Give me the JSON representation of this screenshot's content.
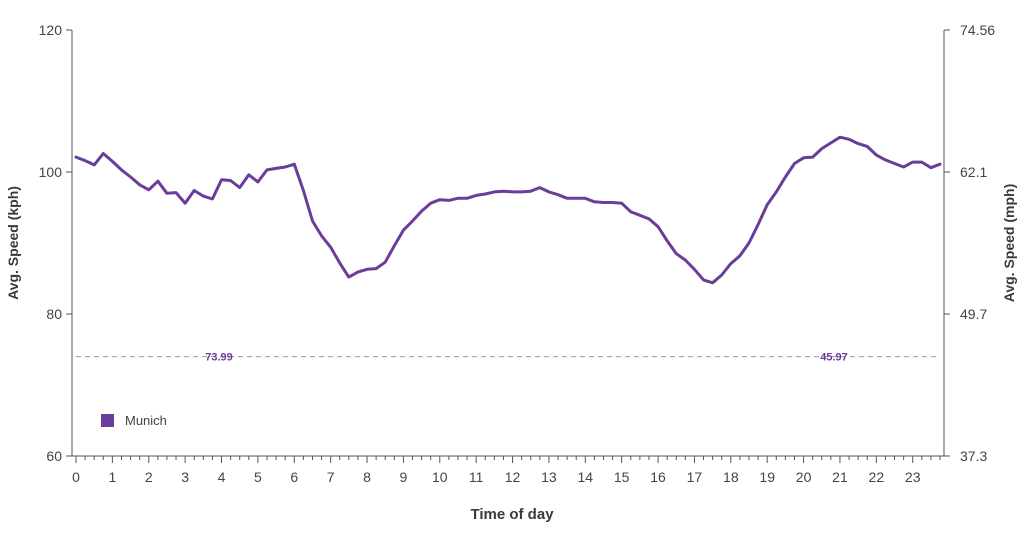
{
  "chart_data": {
    "type": "line",
    "xlabel": "Time of day",
    "ylabel_left": "Avg. Speed (kph)",
    "ylabel_right": "Avg. Speed (mph)",
    "xlim": [
      0,
      23.75
    ],
    "ylim": [
      60,
      120
    ],
    "x_ticks": [
      0,
      1,
      2,
      3,
      4,
      5,
      6,
      7,
      8,
      9,
      10,
      11,
      12,
      13,
      14,
      15,
      16,
      17,
      18,
      19,
      20,
      21,
      22,
      23
    ],
    "y_ticks_left": [
      60,
      80,
      100,
      120
    ],
    "y_ticks_right": [
      {
        "at": 60,
        "label": "37.3"
      },
      {
        "at": 80,
        "label": "49.7"
      },
      {
        "at": 100,
        "label": "62.1"
      },
      {
        "at": 120,
        "label": "74.56"
      }
    ],
    "reference_line": {
      "y": 74.0,
      "label_left": "73.99",
      "label_right": "45.97",
      "style": "dashed"
    },
    "grid": false,
    "legend": {
      "position": "bottom-left"
    },
    "colors": {
      "series": "#6a3d9a",
      "axis": "#555555",
      "reference": "#9a9a9a"
    },
    "series": [
      {
        "name": "Munich",
        "x": [
          0,
          0.25,
          0.5,
          0.75,
          1,
          1.25,
          1.5,
          1.75,
          2,
          2.25,
          2.5,
          2.75,
          3,
          3.25,
          3.5,
          3.75,
          4,
          4.25,
          4.5,
          4.75,
          5,
          5.25,
          5.5,
          5.75,
          6,
          6.25,
          6.5,
          6.75,
          7,
          7.25,
          7.5,
          7.75,
          8,
          8.25,
          8.5,
          8.75,
          9,
          9.25,
          9.5,
          9.75,
          10,
          10.25,
          10.5,
          10.75,
          11,
          11.25,
          11.5,
          11.75,
          12,
          12.25,
          12.5,
          12.75,
          13,
          13.25,
          13.5,
          13.75,
          14,
          14.25,
          14.5,
          14.75,
          15,
          15.25,
          15.5,
          15.75,
          16,
          16.25,
          16.5,
          16.75,
          17,
          17.25,
          17.5,
          17.75,
          18,
          18.25,
          18.5,
          18.75,
          19,
          19.25,
          19.5,
          19.75,
          20,
          20.25,
          20.5,
          20.75,
          21,
          21.25,
          21.5,
          21.75,
          22,
          22.25,
          22.5,
          22.75,
          23,
          23.25,
          23.5,
          23.75
        ],
        "values": [
          102.1,
          101.6,
          101.0,
          102.6,
          101.5,
          100.3,
          99.3,
          98.2,
          97.5,
          98.7,
          97.0,
          97.1,
          95.6,
          97.4,
          96.6,
          96.2,
          98.9,
          98.8,
          97.8,
          99.6,
          98.6,
          100.3,
          100.5,
          100.7,
          101.1,
          97.4,
          93.1,
          91.0,
          89.4,
          87.2,
          85.2,
          85.9,
          86.3,
          86.4,
          87.3,
          89.6,
          91.8,
          93.1,
          94.5,
          95.6,
          96.1,
          96.0,
          96.3,
          96.3,
          96.7,
          96.9,
          97.2,
          97.3,
          97.2,
          97.2,
          97.3,
          97.8,
          97.2,
          96.8,
          96.3,
          96.3,
          96.3,
          95.8,
          95.7,
          95.7,
          95.6,
          94.4,
          93.9,
          93.4,
          92.3,
          90.3,
          88.5,
          87.6,
          86.3,
          84.8,
          84.4,
          85.5,
          87.1,
          88.2,
          90.0,
          92.6,
          95.4,
          97.2,
          99.3,
          101.2,
          102.0,
          102.1,
          103.3,
          104.1,
          104.9,
          104.6,
          104.0,
          103.6,
          102.4,
          101.7,
          101.2,
          100.7,
          101.4,
          101.4,
          100.6,
          101.1
        ]
      }
    ]
  }
}
